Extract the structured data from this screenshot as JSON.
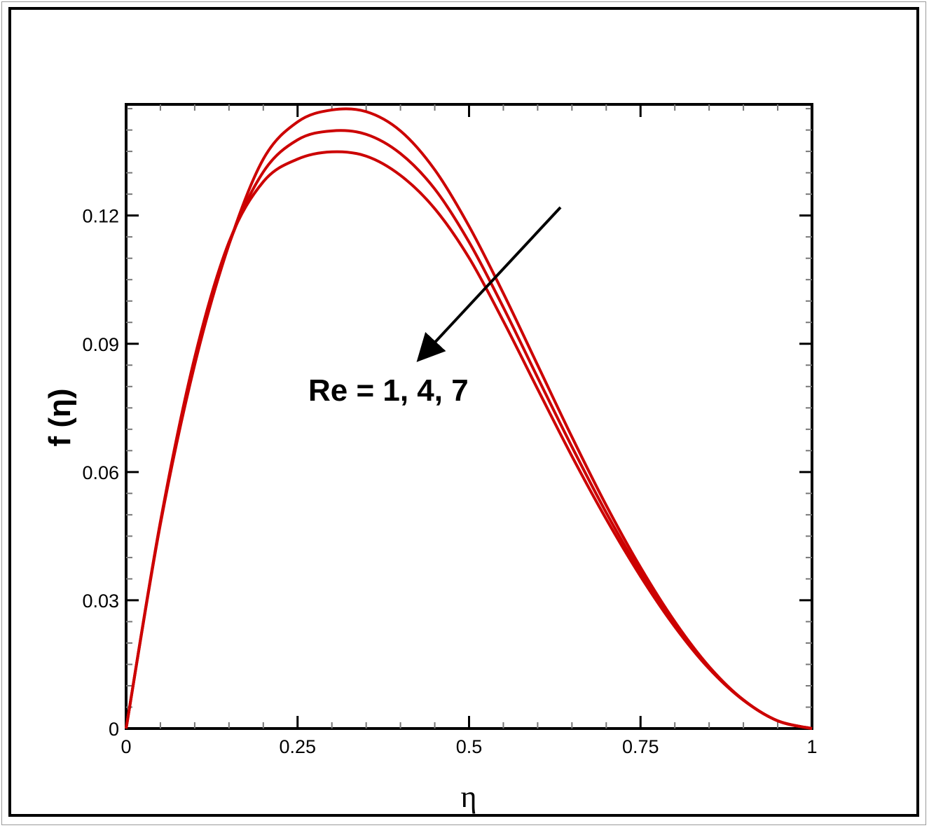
{
  "chart_data": {
    "type": "line",
    "title": "",
    "xlabel": "η",
    "ylabel": "f (η)",
    "xlim": [
      0,
      1
    ],
    "ylim": [
      0,
      0.146
    ],
    "x_ticks": [
      0,
      0.25,
      0.5,
      0.75,
      1
    ],
    "x_tick_labels": [
      "0",
      "0.25",
      "0.5",
      "0.75",
      "1"
    ],
    "y_ticks": [
      0,
      0.03,
      0.06,
      0.09,
      0.12
    ],
    "y_tick_labels": [
      "0",
      "0.03",
      "0.06",
      "0.09",
      "0.12"
    ],
    "grid": false,
    "line_color": "#cc0000",
    "annotation": "Re = 1, 4, 7",
    "x": [
      0,
      0.05,
      0.1,
      0.15,
      0.2,
      0.25,
      0.3,
      0.35,
      0.4,
      0.45,
      0.5,
      0.55,
      0.6,
      0.65,
      0.7,
      0.75,
      0.8,
      0.85,
      0.9,
      0.95,
      1
    ],
    "series": [
      {
        "values": [
          0,
          0.0478,
          0.0851,
          0.1132,
          0.1332,
          0.1419,
          0.1447,
          0.1443,
          0.1398,
          0.1307,
          0.1175,
          0.1018,
          0.085,
          0.0682,
          0.0522,
          0.0377,
          0.025,
          0.0145,
          0.0067,
          0.0018,
          0
        ]
      },
      {
        "values": [
          0,
          0.0481,
          0.0859,
          0.1133,
          0.1302,
          0.1377,
          0.1398,
          0.139,
          0.1345,
          0.1262,
          0.1138,
          0.0985,
          0.0821,
          0.0659,
          0.0505,
          0.0366,
          0.0244,
          0.0143,
          0.0067,
          0.0018,
          0
        ]
      },
      {
        "values": [
          0,
          0.0484,
          0.0868,
          0.1138,
          0.1279,
          0.1332,
          0.1349,
          0.1339,
          0.1294,
          0.1216,
          0.1101,
          0.0953,
          0.0794,
          0.0637,
          0.049,
          0.0356,
          0.0238,
          0.014,
          0.0066,
          0.0018,
          0
        ]
      }
    ]
  }
}
